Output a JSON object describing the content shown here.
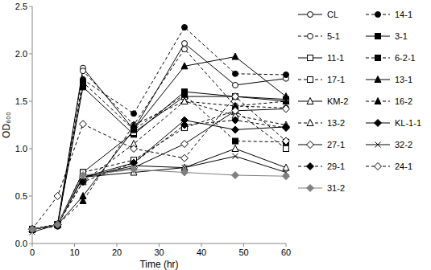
{
  "chart_data": {
    "type": "line",
    "x_label": "Time (hr)",
    "y_label": "OD₆₀₀",
    "x": [
      0,
      6,
      12,
      24,
      36,
      48,
      60
    ],
    "xlim": [
      0,
      60
    ],
    "xticks": [
      0,
      10,
      20,
      30,
      40,
      50,
      60
    ],
    "ylim": [
      0,
      2.5
    ],
    "yticks": [
      {
        "value": 0,
        "label": "0.0"
      },
      {
        "value": 0.5,
        "label": "0.5"
      },
      {
        "value": 1,
        "label": "1.0"
      },
      {
        "value": 1.5,
        "label": "1.5"
      },
      {
        "value": 2,
        "label": "2.0"
      },
      {
        "value": 2.5,
        "label": "2.5"
      }
    ],
    "legend": "right",
    "series": [
      {
        "name": "CL",
        "color": "#000000",
        "marker": "circle-open",
        "line_style": "solid",
        "values": [
          0.15,
          0.2,
          1.85,
          1.2,
          2.11,
          1.67,
          1.74
        ]
      },
      {
        "name": "14-1",
        "color": "#000000",
        "marker": "circle",
        "line_style": "dashed",
        "values": [
          0.15,
          0.18,
          1.73,
          1.37,
          2.28,
          1.79,
          1.78
        ]
      },
      {
        "name": "5-1",
        "color": "#000000",
        "marker": "circle-open",
        "line_style": "dashed",
        "values": [
          0.15,
          0.2,
          1.82,
          1.25,
          2.05,
          1.45,
          1.43
        ]
      },
      {
        "name": "3-1",
        "color": "#000000",
        "marker": "square",
        "line_style": "solid",
        "values": [
          0.15,
          0.2,
          1.65,
          1.15,
          1.6,
          1.55,
          1.52
        ]
      },
      {
        "name": "11-1",
        "color": "#000000",
        "marker": "square-open",
        "line_style": "solid",
        "values": [
          0.15,
          0.2,
          0.75,
          1.17,
          1.55,
          1.55,
          1.5
        ]
      },
      {
        "name": "6-2-1",
        "color": "#000000",
        "marker": "square",
        "line_style": "dashed",
        "values": [
          0.15,
          0.2,
          1.7,
          1.2,
          1.57,
          1.08,
          1.07
        ]
      },
      {
        "name": "17-1",
        "color": "#000000",
        "marker": "square-open",
        "line_style": "dashed",
        "values": [
          0.15,
          0.2,
          0.75,
          0.88,
          1.22,
          1.4,
          1.0
        ]
      },
      {
        "name": "13-1",
        "color": "#000000",
        "marker": "triangle",
        "line_style": "solid",
        "values": [
          0.15,
          0.2,
          0.5,
          1.2,
          1.87,
          1.97,
          1.55
        ]
      },
      {
        "name": "KM-2",
        "color": "#000000",
        "marker": "triangle-open",
        "line_style": "solid",
        "values": [
          0.15,
          0.2,
          0.7,
          0.75,
          0.8,
          1.0,
          0.8
        ]
      },
      {
        "name": "16-2",
        "color": "#000000",
        "marker": "triangle",
        "line_style": "dashed",
        "values": [
          0.15,
          0.2,
          0.45,
          1.25,
          1.5,
          1.45,
          1.5
        ]
      },
      {
        "name": "13-2",
        "color": "#000000",
        "marker": "triangle-open",
        "line_style": "dashed",
        "values": [
          0.15,
          0.2,
          0.65,
          1.05,
          1.5,
          1.35,
          1.25
        ]
      },
      {
        "name": "KL-1-1",
        "color": "#000000",
        "marker": "diamond",
        "line_style": "solid",
        "values": [
          0.15,
          0.2,
          0.7,
          0.85,
          1.3,
          1.2,
          1.23
        ]
      },
      {
        "name": "27-1",
        "color": "#000000",
        "marker": "diamond-open",
        "line_style": "solid",
        "values": [
          0.15,
          0.2,
          0.7,
          0.8,
          1.05,
          1.4,
          1.42
        ]
      },
      {
        "name": "32-2",
        "color": "#000000",
        "marker": "x",
        "line_style": "solid",
        "values": [
          0.12,
          0.2,
          0.7,
          0.82,
          0.8,
          0.92,
          0.75
        ]
      },
      {
        "name": "29-1",
        "color": "#000000",
        "marker": "diamond",
        "line_style": "dashed",
        "values": [
          0.15,
          0.2,
          0.65,
          0.85,
          1.25,
          1.3,
          1.22
        ]
      },
      {
        "name": "24-1",
        "color": "#000000",
        "marker": "diamond-open",
        "line_style": "dashed",
        "values": [
          0.15,
          0.5,
          1.26,
          1.0,
          0.9,
          1.55,
          1.08
        ]
      },
      {
        "name": "31-2",
        "color": "#808080",
        "marker": "diamond",
        "line_style": "solid",
        "values": [
          0.15,
          0.2,
          0.72,
          0.78,
          0.75,
          0.72,
          0.71
        ]
      }
    ]
  }
}
